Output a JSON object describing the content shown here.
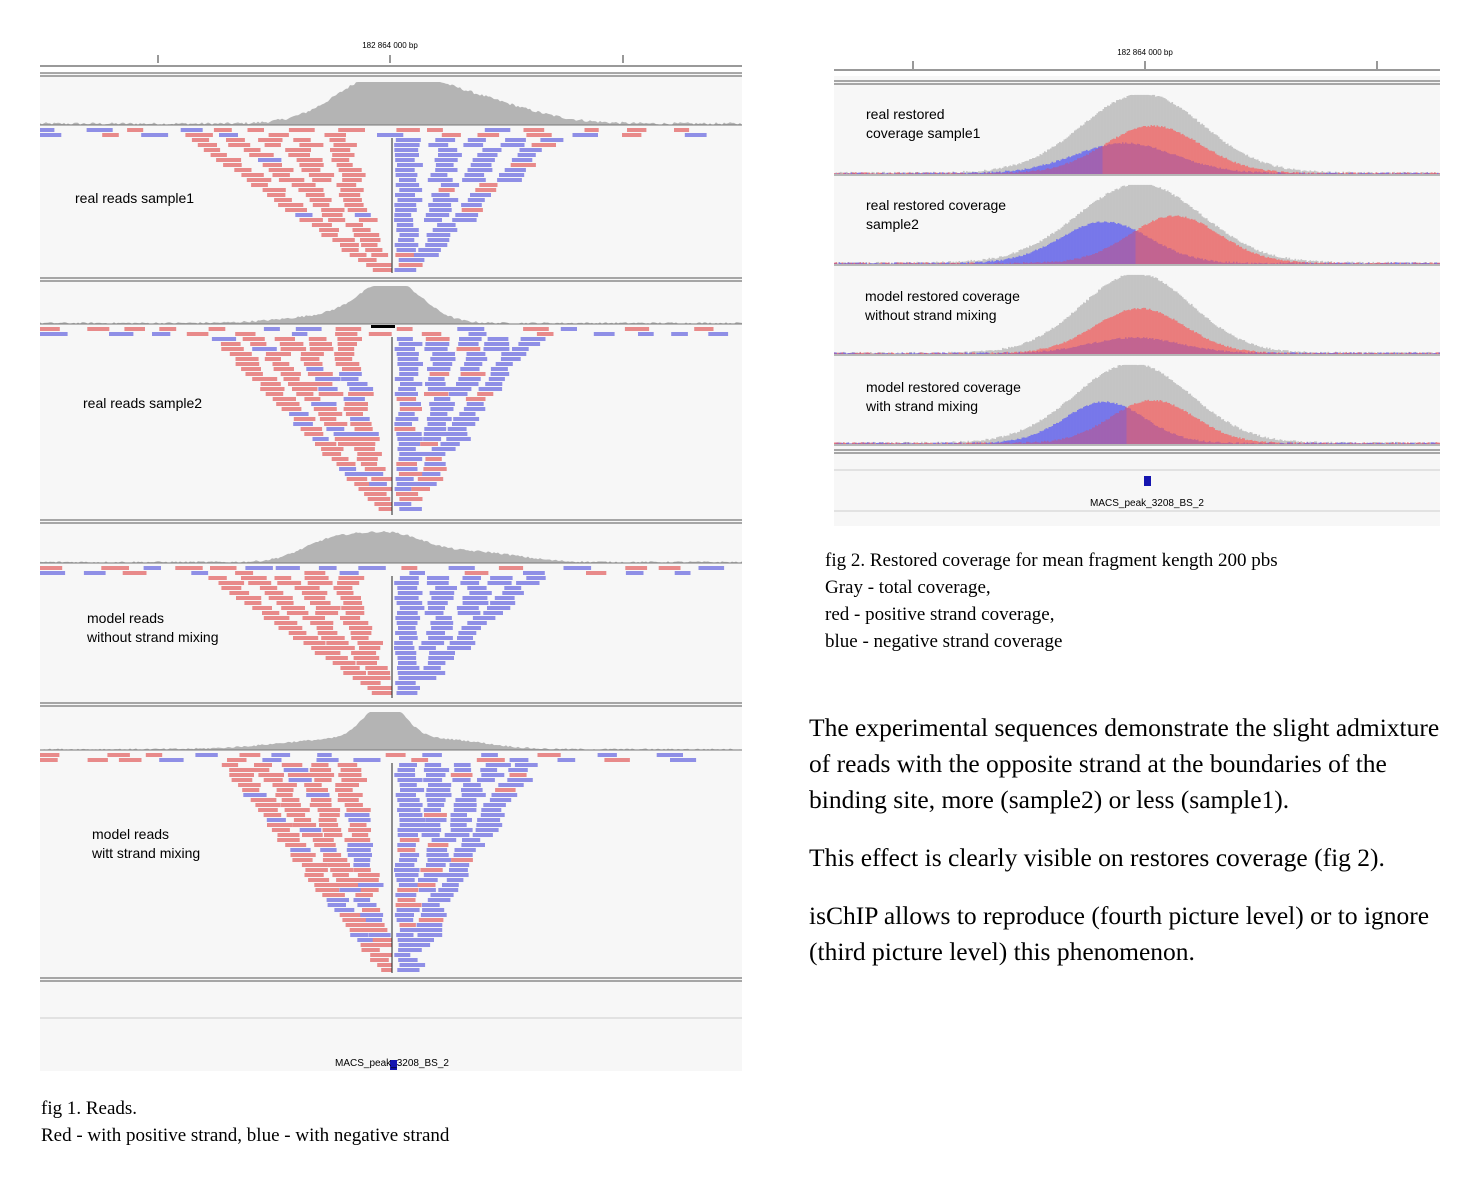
{
  "fig1": {
    "ruler_label": "182 864 000 bp",
    "tracks": [
      {
        "label": "real reads sample1"
      },
      {
        "label": "real reads sample2"
      },
      {
        "label": "model reads\nwithout strand mixing"
      },
      {
        "label": "model reads\nwitt strand mixing"
      }
    ],
    "feature_label": "MACS_peak_3208_BS_2",
    "caption_line1": "fig 1. Reads.",
    "caption_line2": "Red - with positive strand, blue - with negative strand"
  },
  "fig2": {
    "ruler_label": "182 864 000 bp",
    "tracks": [
      {
        "label": "real restored\ncoverage sample1"
      },
      {
        "label": "real restored coverage\nsample2"
      },
      {
        "label": "model restored coverage\nwithout strand mixing"
      },
      {
        "label": "model restored coverage\nwith strand mixing"
      }
    ],
    "feature_label": "MACS_peak_3208_BS_2",
    "caption_line1": "fig 2. Restored coverage for mean fragment kength 200 pbs",
    "caption_line2": "Gray - total coverage,",
    "caption_line3": "red - positive strand coverage,",
    "caption_line4": "blue - negative strand coverage"
  },
  "body_text": {
    "p1": "The experimental sequences demonstrate the slight admixture of reads with the opposite strand at the boundaries of the binding site, more (sample2) or less (sample1).",
    "p2": "This effect is clearly visible on restores coverage (fig 2).",
    "p3": "isChIP allows to reproduce (fourth picture level) or to ignore (third picture level) this phenomenon."
  },
  "colors": {
    "positive_strand": "#e88a8a",
    "negative_strand": "#8f8fe6",
    "total_coverage": "#b4b4b4",
    "feature": "#1515b0"
  }
}
